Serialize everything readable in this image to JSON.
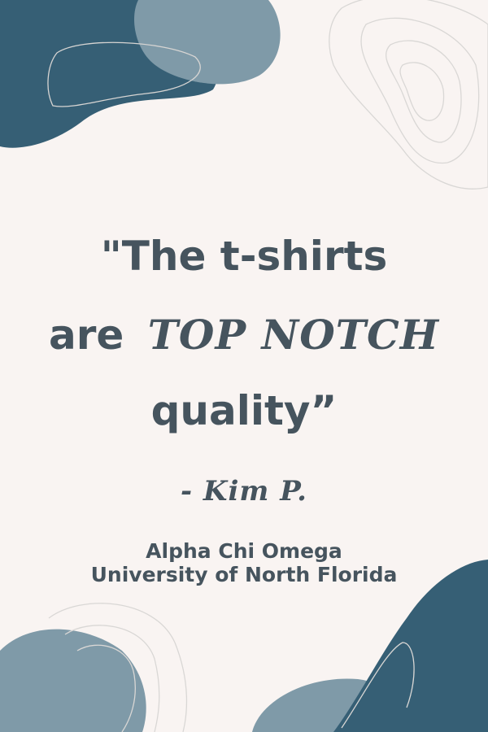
{
  "quote": {
    "line1": "\"The t-shirts",
    "line2_plain": "are",
    "line2_emphasis": "TOP NOTCH",
    "line3": "quality”"
  },
  "attribution": "- Kim P.",
  "organization": {
    "name": "Alpha Chi Omega",
    "school": "University of North Florida"
  },
  "colors": {
    "background": "#f9f4f2",
    "text": "#46545e",
    "dark_blob": "#365f75",
    "light_blob": "#7f9aa8"
  }
}
